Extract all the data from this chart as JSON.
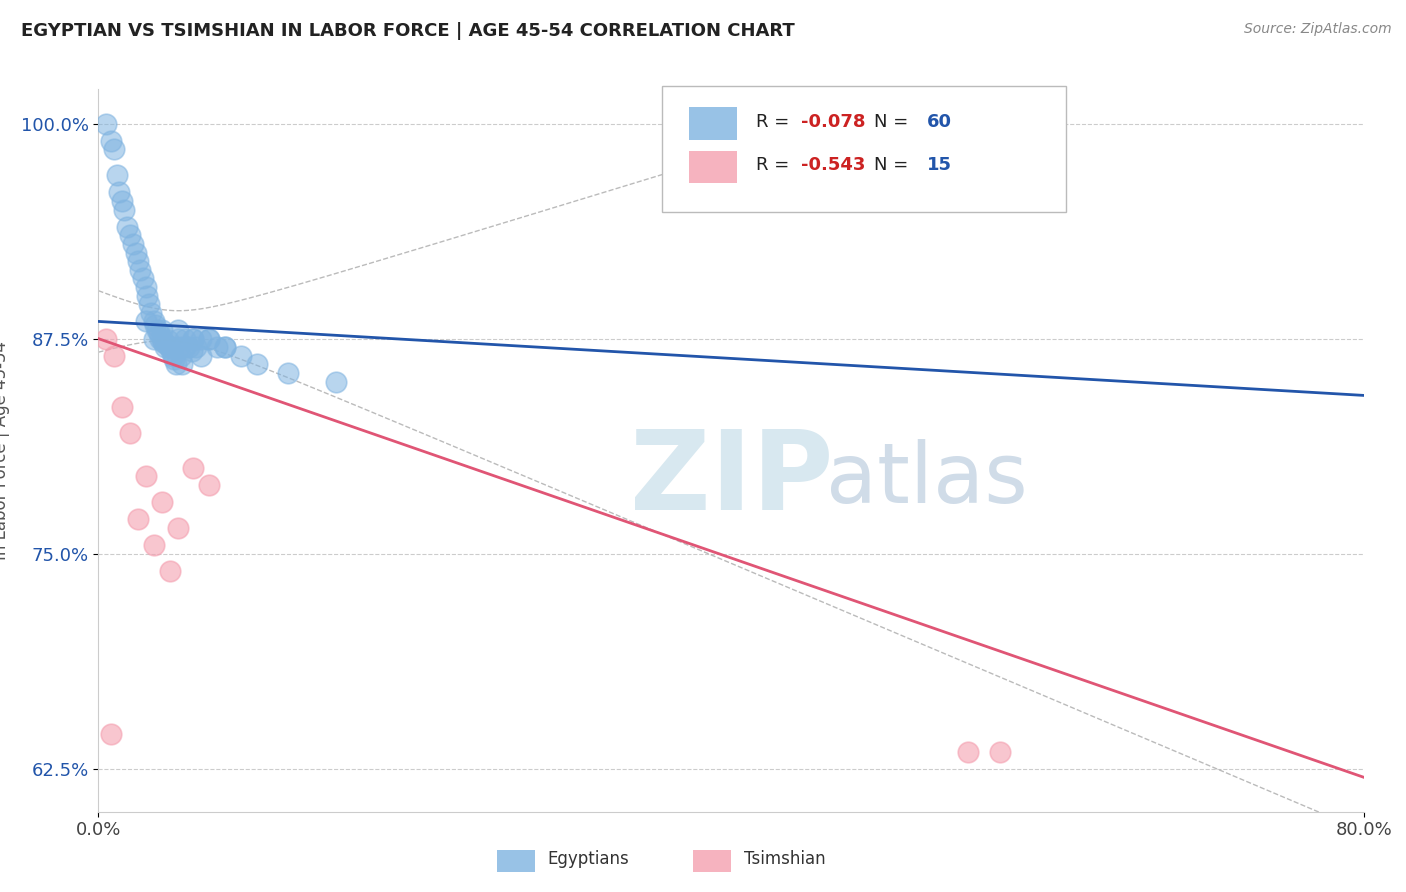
{
  "title": "EGYPTIAN VS TSIMSHIAN IN LABOR FORCE | AGE 45-54 CORRELATION CHART",
  "source_text": "Source: ZipAtlas.com",
  "ylabel": "In Labor Force | Age 45-54",
  "xlim": [
    0.0,
    80.0
  ],
  "ylim": [
    60.0,
    102.0
  ],
  "yticks": [
    62.5,
    75.0,
    87.5,
    100.0
  ],
  "ytick_labels": [
    "62.5%",
    "75.0%",
    "87.5%",
    "100.0%"
  ],
  "egyptian_color": "#7fb3e0",
  "tsimshian_color": "#f4a0b0",
  "egyptian_line_color": "#2255aa",
  "tsimshian_line_color": "#e05575",
  "ci_color": "#aaaaaa",
  "egyptian_R": -0.078,
  "egyptian_N": 60,
  "tsimshian_R": -0.543,
  "tsimshian_N": 15,
  "watermark_zip": "ZIP",
  "watermark_atlas": "atlas",
  "eg_trend_y0": 88.5,
  "eg_trend_y80": 84.2,
  "ts_trend_y0": 87.5,
  "ts_trend_y80": 62.0,
  "ci_x_end": 40.0,
  "egyptian_scatter_x": [
    0.5,
    0.8,
    1.0,
    1.2,
    1.3,
    1.5,
    1.6,
    1.8,
    2.0,
    2.2,
    2.4,
    2.5,
    2.6,
    2.8,
    3.0,
    3.1,
    3.2,
    3.3,
    3.5,
    3.6,
    3.7,
    3.8,
    3.9,
    4.0,
    4.1,
    4.2,
    4.3,
    4.4,
    4.5,
    4.6,
    4.7,
    4.8,
    4.9,
    5.0,
    5.1,
    5.2,
    5.3,
    5.5,
    5.7,
    5.9,
    6.0,
    6.2,
    6.5,
    7.0,
    7.5,
    8.0,
    9.0,
    10.0,
    12.0,
    15.0,
    3.0,
    4.0,
    5.0,
    6.0,
    7.0,
    8.0,
    3.5,
    4.5,
    5.5,
    6.5
  ],
  "egyptian_scatter_y": [
    100.0,
    99.0,
    98.5,
    97.0,
    96.0,
    95.5,
    95.0,
    94.0,
    93.5,
    93.0,
    92.5,
    92.0,
    91.5,
    91.0,
    90.5,
    90.0,
    89.5,
    89.0,
    88.5,
    88.3,
    88.0,
    87.8,
    87.5,
    87.5,
    87.3,
    87.0,
    87.2,
    87.4,
    87.0,
    86.8,
    86.5,
    86.3,
    86.0,
    87.5,
    87.0,
    86.5,
    86.0,
    87.5,
    87.0,
    86.8,
    87.5,
    87.0,
    86.5,
    87.5,
    87.0,
    87.0,
    86.5,
    86.0,
    85.5,
    85.0,
    88.5,
    88.0,
    88.0,
    87.5,
    87.5,
    87.0,
    87.5,
    87.0,
    87.0,
    87.5
  ],
  "tsimshian_scatter_x": [
    0.5,
    1.0,
    1.5,
    2.0,
    3.0,
    4.0,
    5.0,
    6.0,
    7.0,
    0.8,
    2.5,
    3.5,
    4.5,
    55.0,
    57.0
  ],
  "tsimshian_scatter_y": [
    87.5,
    86.5,
    83.5,
    82.0,
    79.5,
    78.0,
    76.5,
    80.0,
    79.0,
    64.5,
    77.0,
    75.5,
    74.0,
    63.5,
    63.5
  ]
}
